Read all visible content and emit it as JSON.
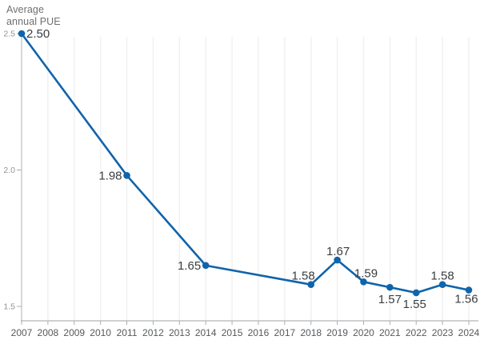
{
  "chart_data": {
    "type": "line",
    "title": "Average annual PUE",
    "series": [
      {
        "name": "Average annual PUE",
        "x": [
          2007,
          2011,
          2014,
          2018,
          2019,
          2020,
          2021,
          2022,
          2023,
          2024
        ],
        "y": [
          2.5,
          1.98,
          1.65,
          1.58,
          1.67,
          1.59,
          1.57,
          1.55,
          1.58,
          1.56
        ],
        "point_labels": [
          "2.50",
          "1.98",
          "1.65",
          "1.58",
          "1.67",
          "1.59",
          "1.57",
          "1.55",
          "1.58",
          "1.56"
        ]
      }
    ],
    "x_ticks": [
      "2007",
      "2008",
      "2009",
      "2010",
      "2011",
      "2012",
      "2013",
      "2014",
      "2015",
      "2016",
      "2017",
      "2018",
      "2019",
      "2020",
      "2021",
      "2022",
      "2023",
      "2024"
    ],
    "y_ticks": [
      {
        "label": "2.5",
        "value": 2.5
      },
      {
        "label": "2.0",
        "value": 2.0
      },
      {
        "label": "1.5",
        "value": 1.5
      }
    ],
    "xlim": [
      2007,
      2024
    ],
    "ylim": [
      1.45,
      2.5
    ],
    "grid": "vertical-only",
    "legend_position": "none",
    "colors": {
      "line": "#1064ab",
      "point": "#1064ab",
      "grid": "#f1f1f1",
      "y_axis": "#b7babd",
      "x_axis": "#9ea2a6",
      "tick_mark": "#a9adb1",
      "y_tick_label": "#8f9398",
      "x_tick_label": "#57595c",
      "data_label": "#3a3d40",
      "title": "#6f6f6f",
      "background": "#ffffff"
    }
  }
}
